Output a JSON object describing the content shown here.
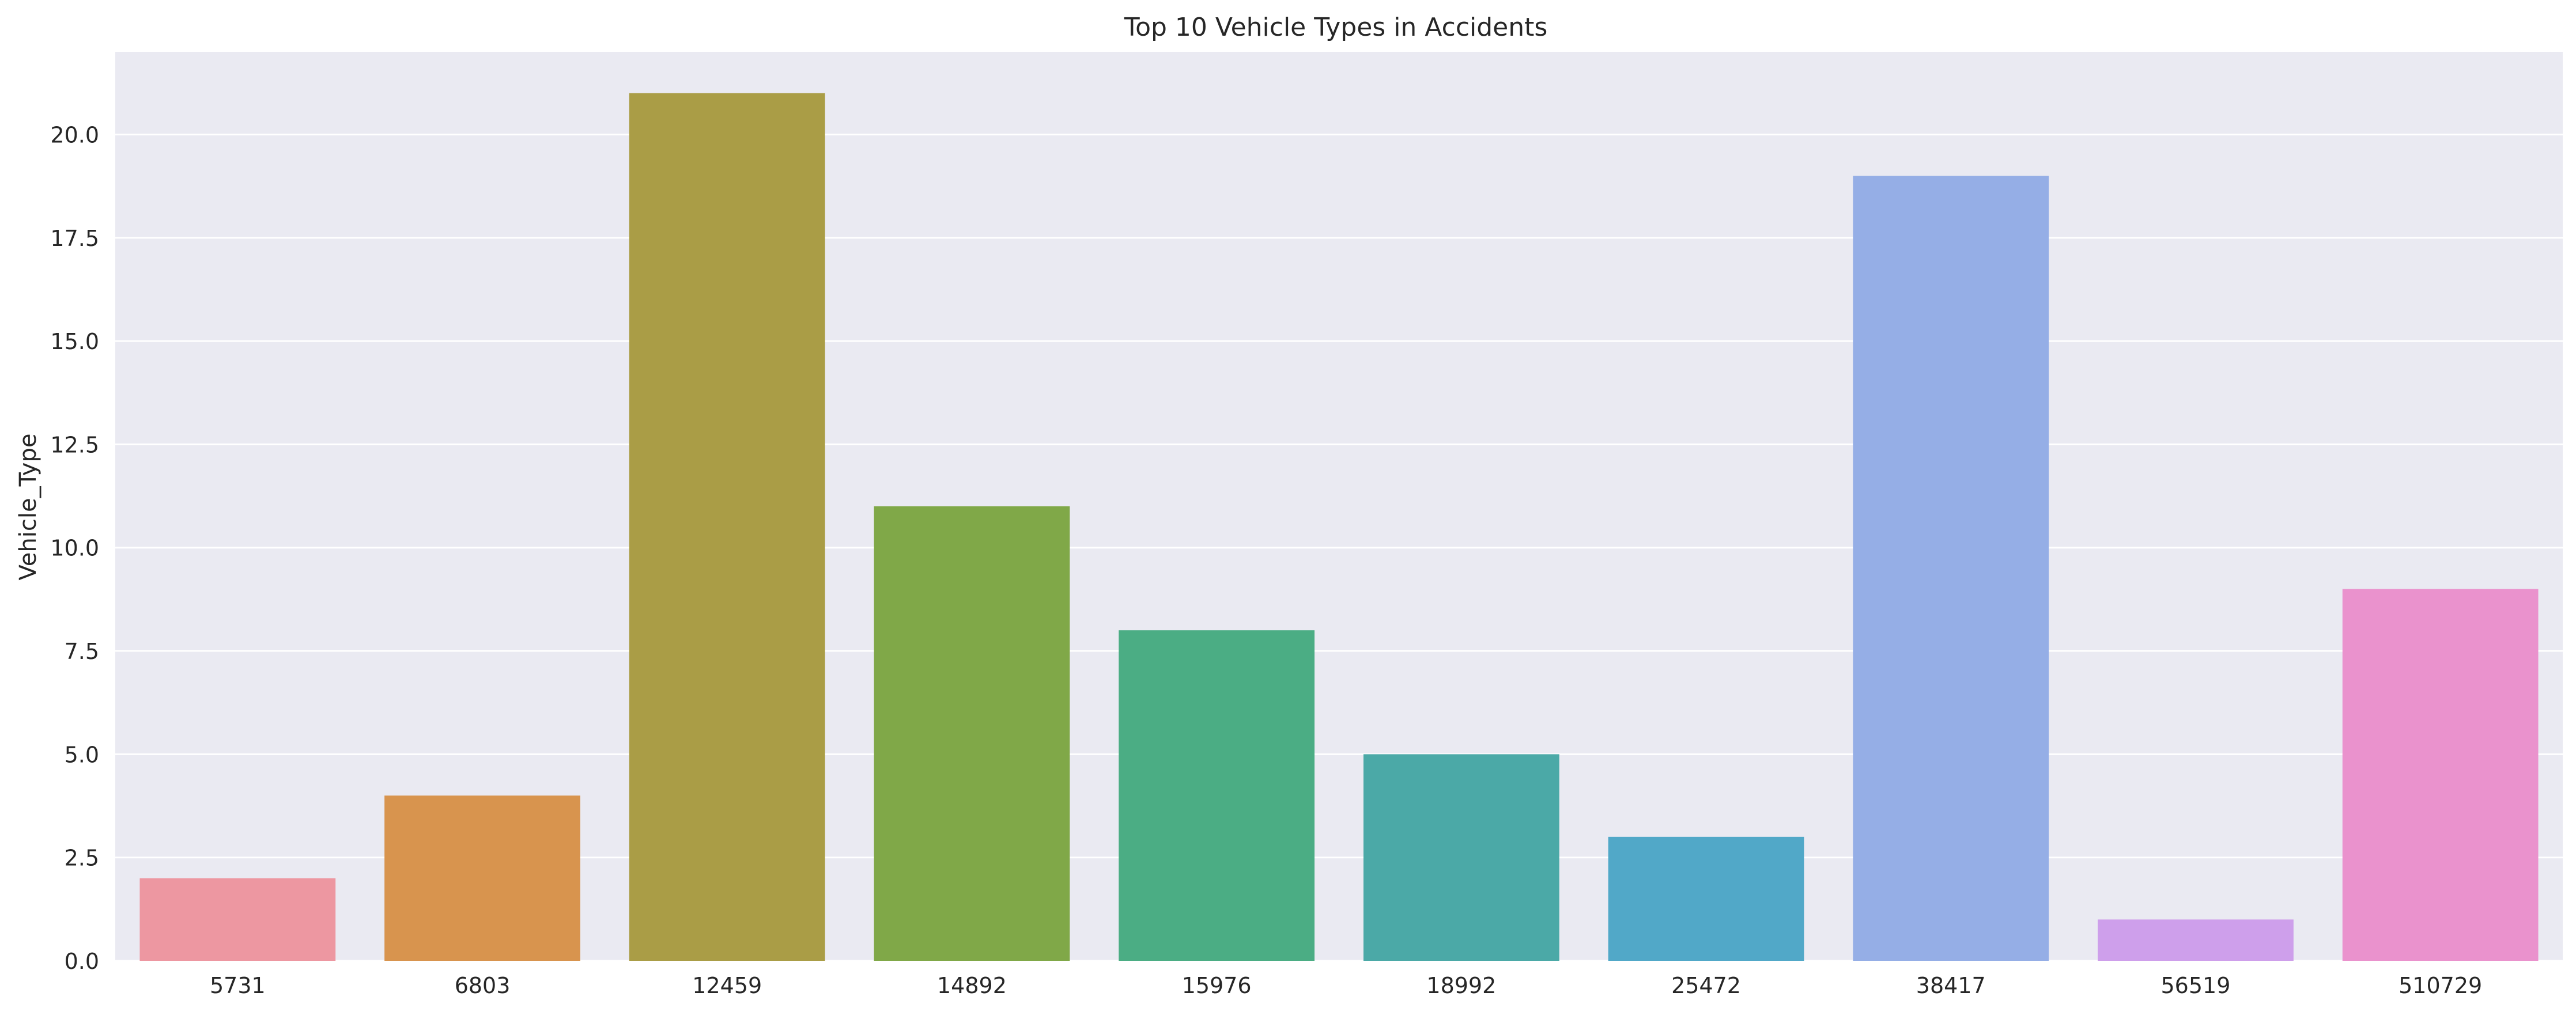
{
  "chart_data": {
    "type": "bar",
    "title": "Top 10 Vehicle Types in Accidents",
    "xlabel": "",
    "ylabel": "Vehicle_Type",
    "categories": [
      "5731",
      "6803",
      "12459",
      "14892",
      "15976",
      "18992",
      "25472",
      "38417",
      "56519",
      "510729"
    ],
    "values": [
      2,
      4,
      21,
      11,
      8,
      5,
      3,
      19,
      1,
      9
    ],
    "colors": [
      "#ED97A1",
      "#D8944E",
      "#AA9D46",
      "#80A848",
      "#4BAD84",
      "#4BA9A7",
      "#51A8C8",
      "#95AEE6",
      "#CE9FEB",
      "#EA92CD"
    ],
    "ylim": [
      0,
      22
    ],
    "yticks": [
      0,
      2.5,
      5,
      7.5,
      10,
      12.5,
      15,
      17.5,
      20
    ],
    "ytick_labels": [
      "0.0",
      "2.5",
      "5.0",
      "7.5",
      "10.0",
      "12.5",
      "15.0",
      "17.5",
      "20.0"
    ],
    "grid": true,
    "plot_background": "#EAEAF2",
    "grid_color": "#FFFFFF"
  }
}
